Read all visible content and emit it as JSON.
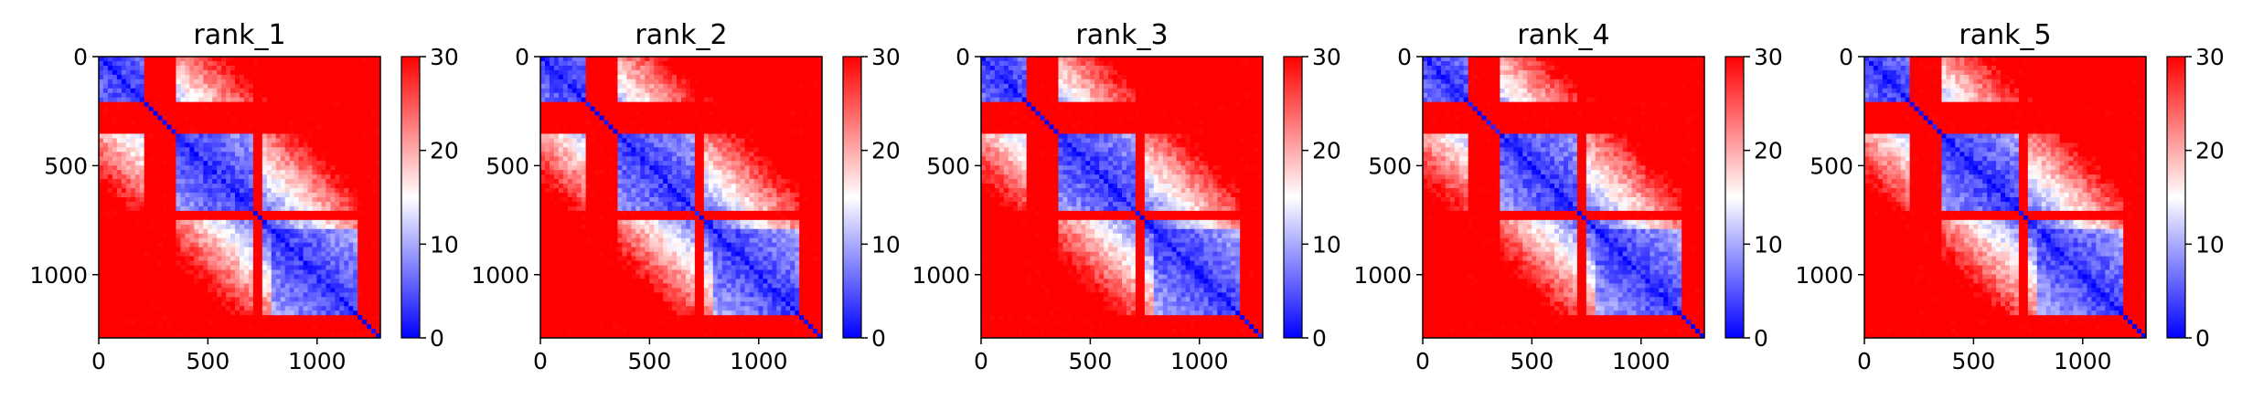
{
  "chart_data": [
    {
      "type": "heatmap",
      "title": "rank_1",
      "x_ticks": [
        "0",
        "500",
        "1000"
      ],
      "y_ticks": [
        "0",
        "500",
        "1000"
      ],
      "colorbar_ticks": [
        "0",
        "10",
        "20",
        "30"
      ],
      "xlim": [
        0,
        1290
      ],
      "ylim": [
        1290,
        0
      ],
      "clim": [
        0,
        30
      ],
      "colormap": [
        "#0000ff",
        "#ffffff",
        "#ff0000"
      ],
      "variant": 0
    },
    {
      "type": "heatmap",
      "title": "rank_2",
      "x_ticks": [
        "0",
        "500",
        "1000"
      ],
      "y_ticks": [
        "0",
        "500",
        "1000"
      ],
      "colorbar_ticks": [
        "0",
        "10",
        "20",
        "30"
      ],
      "xlim": [
        0,
        1290
      ],
      "ylim": [
        1290,
        0
      ],
      "clim": [
        0,
        30
      ],
      "colormap": [
        "#0000ff",
        "#ffffff",
        "#ff0000"
      ],
      "variant": 1
    },
    {
      "type": "heatmap",
      "title": "rank_3",
      "x_ticks": [
        "0",
        "500",
        "1000"
      ],
      "y_ticks": [
        "0",
        "500",
        "1000"
      ],
      "colorbar_ticks": [
        "0",
        "10",
        "20",
        "30"
      ],
      "xlim": [
        0,
        1290
      ],
      "ylim": [
        1290,
        0
      ],
      "clim": [
        0,
        30
      ],
      "colormap": [
        "#0000ff",
        "#ffffff",
        "#ff0000"
      ],
      "variant": 2
    },
    {
      "type": "heatmap",
      "title": "rank_4",
      "x_ticks": [
        "0",
        "500",
        "1000"
      ],
      "y_ticks": [
        "0",
        "500",
        "1000"
      ],
      "colorbar_ticks": [
        "0",
        "10",
        "20",
        "30"
      ],
      "xlim": [
        0,
        1290
      ],
      "ylim": [
        1290,
        0
      ],
      "clim": [
        0,
        30
      ],
      "colormap": [
        "#0000ff",
        "#ffffff",
        "#ff0000"
      ],
      "variant": 3
    },
    {
      "type": "heatmap",
      "title": "rank_5",
      "x_ticks": [
        "0",
        "500",
        "1000"
      ],
      "y_ticks": [
        "0",
        "500",
        "1000"
      ],
      "colorbar_ticks": [
        "0",
        "10",
        "20",
        "30"
      ],
      "xlim": [
        0,
        1290
      ],
      "ylim": [
        1290,
        0
      ],
      "clim": [
        0,
        30
      ],
      "colormap": [
        "#0000ff",
        "#ffffff",
        "#ff0000"
      ],
      "variant": 4
    }
  ]
}
